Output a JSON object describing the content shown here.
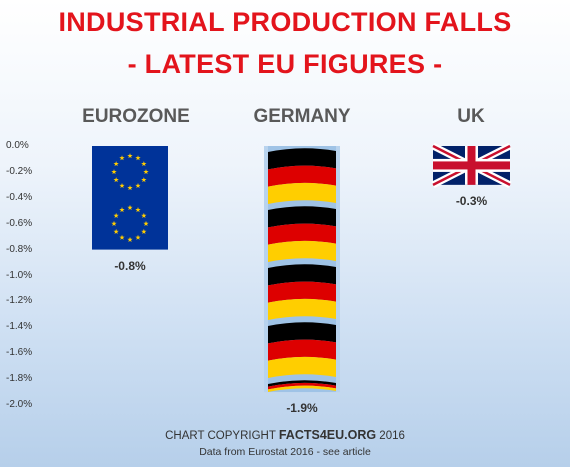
{
  "title_line1": "INDUSTRIAL PRODUCTION FALLS",
  "title_line2": "- LATEST EU FIGURES -",
  "chart_data": {
    "type": "bar",
    "categories": [
      "EUROZONE",
      "GERMANY",
      "UK"
    ],
    "values": [
      -0.8,
      -1.9,
      -0.3
    ],
    "value_labels": [
      "-0.8%",
      "-1.9%",
      "-0.3%"
    ],
    "ylim": [
      -2.0,
      0.0
    ],
    "y_ticks": [
      "0.0%",
      "-0.2%",
      "-0.4%",
      "-0.6%",
      "-0.8%",
      "-1.0%",
      "-1.2%",
      "-1.4%",
      "-1.6%",
      "-1.8%",
      "-2.0%"
    ],
    "bar_fills": [
      "eu-flag",
      "germany-flag",
      "uk-flag"
    ],
    "grid": false,
    "legend": "none"
  },
  "colors": {
    "title": "#e3141c",
    "eu_blue": "#003399",
    "eu_star": "#ffcc00",
    "de_black": "#000000",
    "de_red": "#dd0000",
    "de_gold": "#ffce00",
    "uk_blue": "#012169",
    "uk_red": "#c8102e"
  },
  "footer": {
    "copyright_prefix": "CHART COPYRIGHT ",
    "copyright_site": "FACTS4EU.ORG",
    "copyright_year": " 2016",
    "source": "Data from Eurostat 2016 - see article"
  }
}
